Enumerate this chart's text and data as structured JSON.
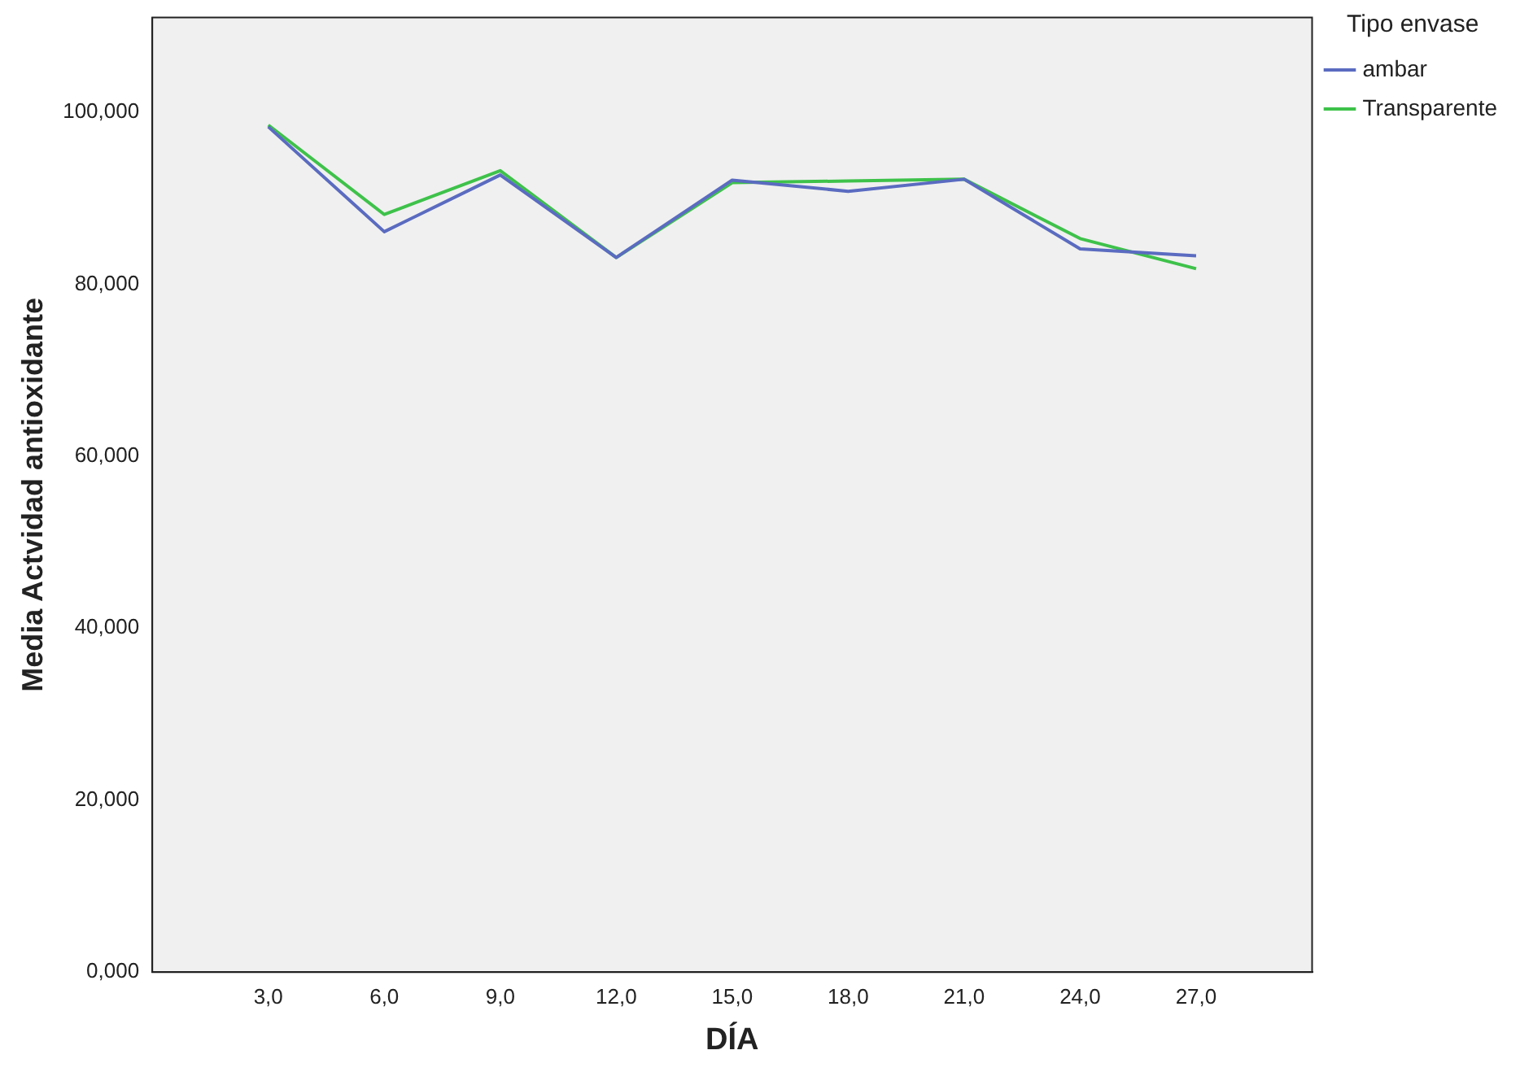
{
  "chart_data": {
    "type": "line",
    "xlabel": "DÍA",
    "ylabel": "Media Actvidad antioxidante",
    "legend_title": "Tipo envase",
    "x": [
      3,
      6,
      9,
      12,
      15,
      18,
      21,
      24,
      27
    ],
    "xlim": [
      0,
      30
    ],
    "xticks": [
      {
        "value": 3,
        "label": "3,0"
      },
      {
        "value": 6,
        "label": "6,0"
      },
      {
        "value": 9,
        "label": "9,0"
      },
      {
        "value": 12,
        "label": "12,0"
      },
      {
        "value": 15,
        "label": "15,0"
      },
      {
        "value": 18,
        "label": "18,0"
      },
      {
        "value": 21,
        "label": "21,0"
      },
      {
        "value": 24,
        "label": "24,0"
      },
      {
        "value": 27,
        "label": "27,0"
      }
    ],
    "ylim": [
      0,
      111
    ],
    "yticks": [
      {
        "value": 0,
        "label": "0,000"
      },
      {
        "value": 20,
        "label": "20,000"
      },
      {
        "value": 40,
        "label": "40,000"
      },
      {
        "value": 60,
        "label": "60,000"
      },
      {
        "value": 80,
        "label": "80,000"
      },
      {
        "value": 100,
        "label": "100,000"
      }
    ],
    "series": [
      {
        "name": "ambar",
        "color": "#5a6bc0",
        "values": [
          98.3,
          86.1,
          92.7,
          83.1,
          92.1,
          90.8,
          92.2,
          84.1,
          83.3
        ]
      },
      {
        "name": "Transparente",
        "color": "#3ec24a",
        "values": [
          98.5,
          88.1,
          93.2,
          83.1,
          91.8,
          92.0,
          92.2,
          85.3,
          81.8
        ]
      }
    ],
    "grid": false,
    "legend": "top right",
    "marker": "none",
    "line_style": "solid"
  }
}
